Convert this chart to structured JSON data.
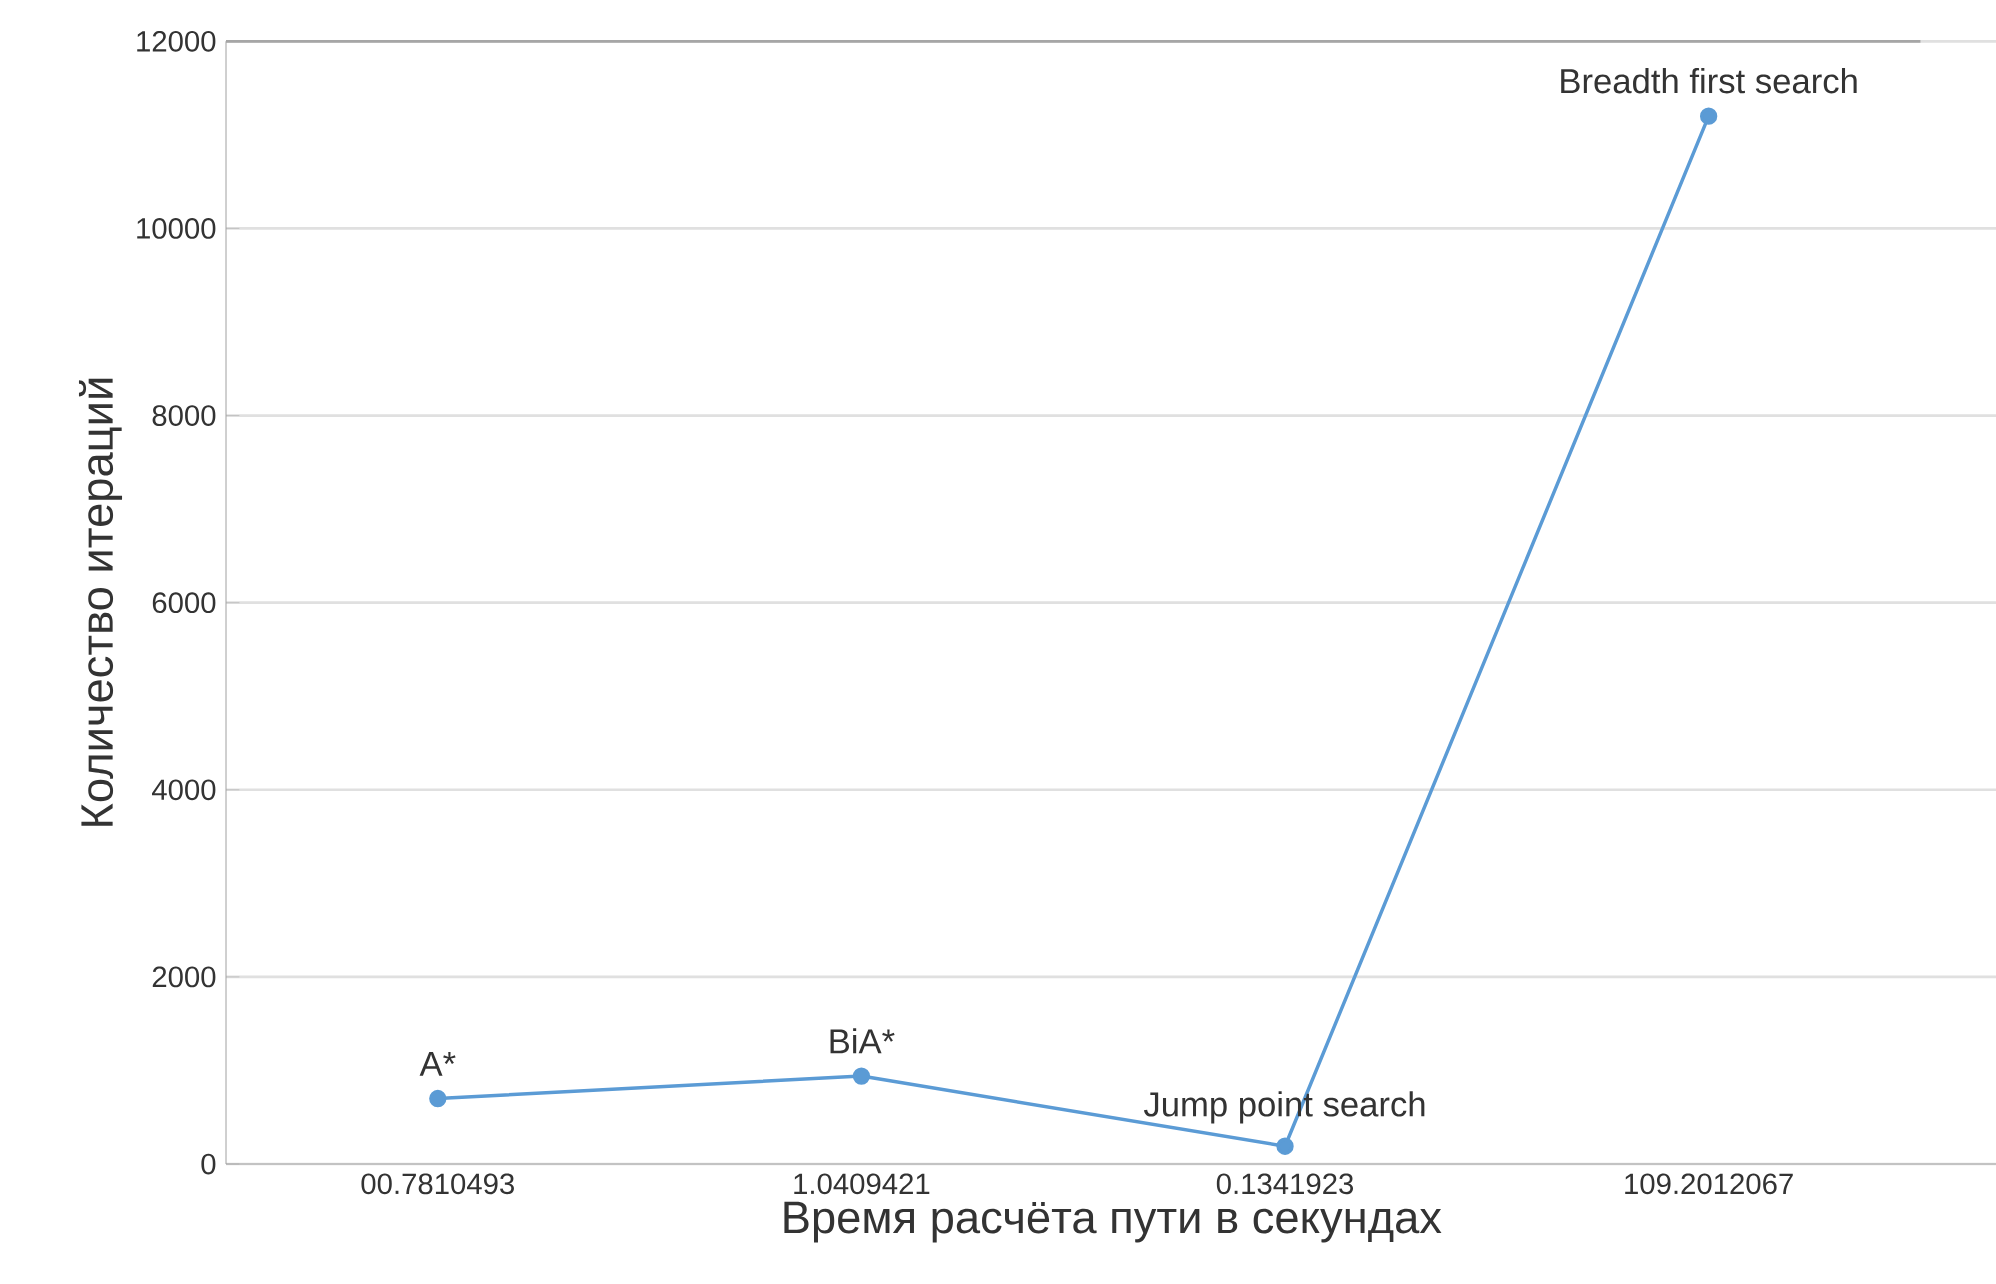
{
  "chart_data": {
    "type": "line",
    "xlabel": "Время расчёта пути в секундах",
    "ylabel": "Количество итераций",
    "categories": [
      "00.7810493",
      "1.0409421",
      "0.1341923",
      "109.2012067"
    ],
    "series": [
      {
        "color": "#5b9bd5",
        "values": [
          700,
          940,
          190,
          11200
        ]
      }
    ],
    "ylim": [
      0,
      12000
    ],
    "yticks": [
      0,
      2000,
      4000,
      6000,
      8000,
      10000,
      12000
    ],
    "grid": "y",
    "marker": "circle",
    "line_style": "solid",
    "annotations": [
      {
        "text": "A*",
        "x": "00.7810493",
        "y": 700
      },
      {
        "text": "BiA*",
        "x": "1.0409421",
        "y": 940
      },
      {
        "text": "Jump point search",
        "x": "0.1341923",
        "y": 190
      },
      {
        "text": "Breadth first search",
        "x": "109.2012067",
        "y": 11200
      }
    ]
  }
}
